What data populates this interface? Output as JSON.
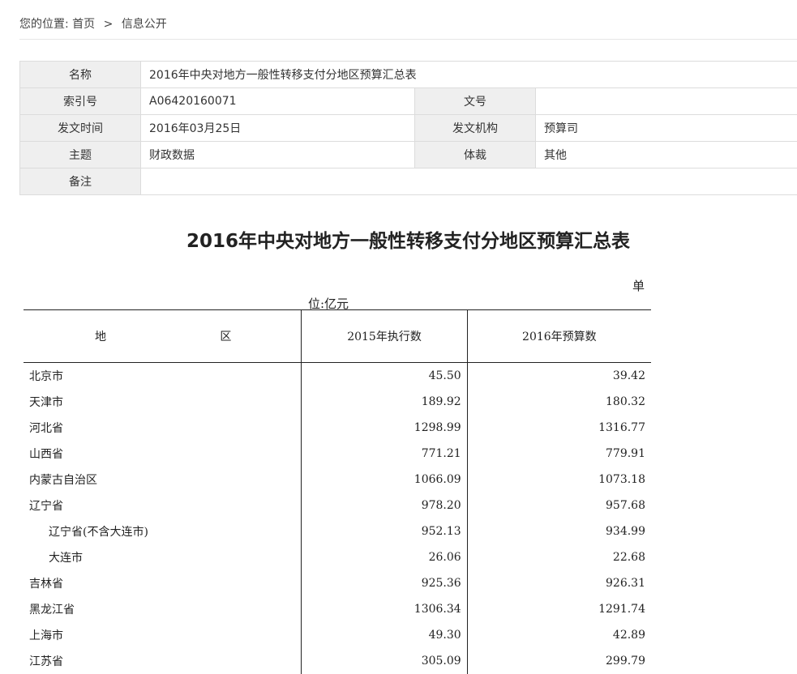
{
  "breadcrumb": {
    "prefix": "您的位置:",
    "home": "首页",
    "sep": ">",
    "current": "信息公开"
  },
  "meta": {
    "name_label": "名称",
    "name_value": "2016年中央对地方一般性转移支付分地区预算汇总表",
    "index_label": "索引号",
    "index_value": "A06420160071",
    "docno_label": "文号",
    "docno_value": "",
    "date_label": "发文时间",
    "date_value": "2016年03月25日",
    "issuer_label": "发文机构",
    "issuer_value": "预算司",
    "topic_label": "主题",
    "topic_value": "财政数据",
    "genre_label": "体裁",
    "genre_value": "其他",
    "remark_label": "备注",
    "remark_value": ""
  },
  "document": {
    "title": "2016年中央对地方一般性转移支付分地区预算汇总表",
    "unit_line1": "单",
    "unit_line2": "位:亿元"
  },
  "table": {
    "header": {
      "region_a": "地",
      "region_b": "区",
      "col_2015": "2015年执行数",
      "col_2016": "2016年预算数"
    },
    "rows": [
      {
        "region": "北京市",
        "v2015": "45.50",
        "v2016": "39.42",
        "indent": false
      },
      {
        "region": "天津市",
        "v2015": "189.92",
        "v2016": "180.32",
        "indent": false
      },
      {
        "region": "河北省",
        "v2015": "1298.99",
        "v2016": "1316.77",
        "indent": false
      },
      {
        "region": "山西省",
        "v2015": "771.21",
        "v2016": "779.91",
        "indent": false
      },
      {
        "region": "内蒙古自治区",
        "v2015": "1066.09",
        "v2016": "1073.18",
        "indent": false
      },
      {
        "region": "辽宁省",
        "v2015": "978.20",
        "v2016": "957.68",
        "indent": false
      },
      {
        "region": "辽宁省(不含大连市)",
        "v2015": "952.13",
        "v2016": "934.99",
        "indent": true
      },
      {
        "region": "大连市",
        "v2015": "26.06",
        "v2016": "22.68",
        "indent": true
      },
      {
        "region": "吉林省",
        "v2015": "925.36",
        "v2016": "926.31",
        "indent": false
      },
      {
        "region": "黑龙江省",
        "v2015": "1306.34",
        "v2016": "1291.74",
        "indent": false
      },
      {
        "region": "上海市",
        "v2015": "49.30",
        "v2016": "42.89",
        "indent": false
      },
      {
        "region": "江苏省",
        "v2015": "305.09",
        "v2016": "299.79",
        "indent": false
      }
    ]
  }
}
